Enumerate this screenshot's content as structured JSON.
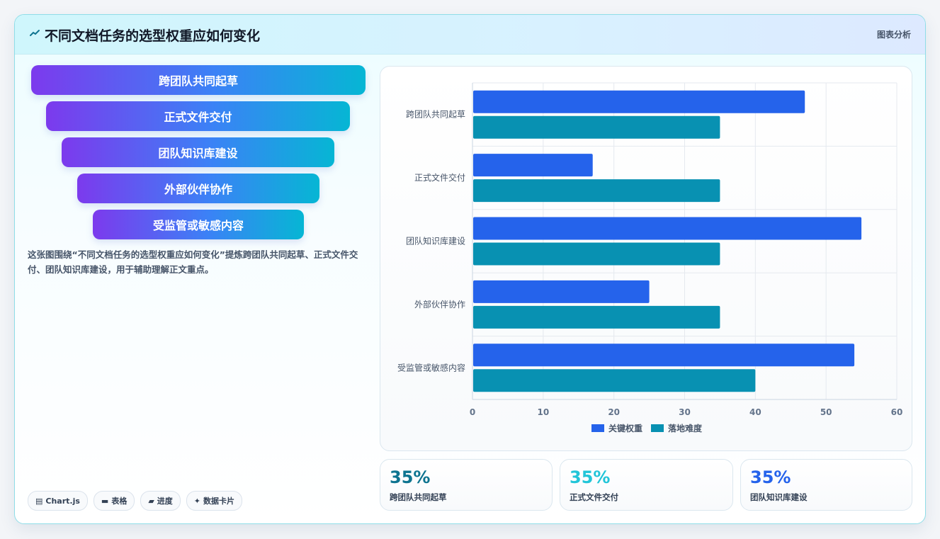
{
  "header": {
    "title": "不同文档任务的选型权重应如何变化",
    "tag": "图表分析"
  },
  "funnel": {
    "steps": [
      "跨团队共同起草",
      "正式文件交付",
      "团队知识库建设",
      "外部伙伴协作",
      "受监管或敏感内容"
    ]
  },
  "description": "这张图围绕“不同文档任务的选型权重应如何变化”提炼跨团队共同起草、正式文件交付、团队知识库建设，用于辅助理解正文重点。",
  "chips": [
    {
      "icon": "chart-icon",
      "glyph": "▤",
      "label": "Chart.js"
    },
    {
      "icon": "table-icon",
      "glyph": "▬",
      "label": "表格"
    },
    {
      "icon": "progress-icon",
      "glyph": "▰",
      "label": "进度"
    },
    {
      "icon": "sparkle-icon",
      "glyph": "✦",
      "label": "数据卡片"
    }
  ],
  "chart_data": {
    "type": "bar",
    "orientation": "horizontal",
    "categories": [
      "跨团队共同起草",
      "正式文件交付",
      "团队知识库建设",
      "外部伙伴协作",
      "受监管或敏感内容"
    ],
    "series": [
      {
        "name": "关键权重",
        "values": [
          47,
          17,
          55,
          25,
          54
        ],
        "color": "#2563eb"
      },
      {
        "name": "落地难度",
        "values": [
          35,
          35,
          35,
          35,
          40
        ],
        "color": "#0891b2"
      }
    ],
    "xlim": [
      0,
      60
    ],
    "xticks": [
      "0",
      "10",
      "20",
      "30",
      "40",
      "50",
      "60"
    ],
    "grid": true,
    "legend": "bottom"
  },
  "stats": [
    {
      "value": "35%",
      "label": "跨团队共同起草",
      "color": "#0e7490"
    },
    {
      "value": "35%",
      "label": "正式文件交付",
      "color": "#22c5d8"
    },
    {
      "value": "35%",
      "label": "团队知识库建设",
      "color": "#2563eb"
    }
  ]
}
